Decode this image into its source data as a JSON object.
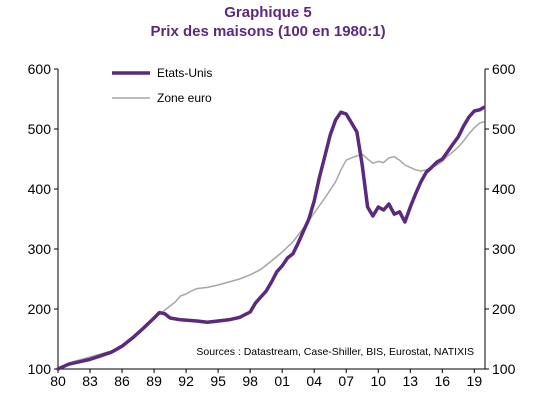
{
  "chart_data": {
    "type": "line",
    "title": "Graphique 5",
    "subtitle": "Prix des maisons (100 en 1980:1)",
    "source": "Sources  : Datastream,  Case-Shiller, BIS, Eurostat,  NATIXIS",
    "xlim": [
      1980,
      2020
    ],
    "ylim": [
      100,
      600
    ],
    "yticks": [
      100,
      200,
      300,
      400,
      500,
      600
    ],
    "xticks": [
      {
        "label": "80",
        "year": 1980
      },
      {
        "label": "83",
        "year": 1983
      },
      {
        "label": "86",
        "year": 1986
      },
      {
        "label": "89",
        "year": 1989
      },
      {
        "label": "92",
        "year": 1992
      },
      {
        "label": "95",
        "year": 1995
      },
      {
        "label": "98",
        "year": 1998
      },
      {
        "label": "01",
        "year": 2001
      },
      {
        "label": "04",
        "year": 2004
      },
      {
        "label": "07",
        "year": 2007
      },
      {
        "label": "10",
        "year": 2010
      },
      {
        "label": "13",
        "year": 2013
      },
      {
        "label": "16",
        "year": 2016
      },
      {
        "label": "19",
        "year": 2019
      }
    ],
    "grid": false,
    "legend_position": "top-left",
    "series": [
      {
        "name": "Etats-Unis",
        "color": "#5b2a7e",
        "points": [
          [
            1980.0,
            100
          ],
          [
            1981.0,
            108
          ],
          [
            1982.0,
            112
          ],
          [
            1983.0,
            116
          ],
          [
            1984.0,
            122
          ],
          [
            1985.0,
            128
          ],
          [
            1986.0,
            138
          ],
          [
            1987.0,
            152
          ],
          [
            1988.0,
            168
          ],
          [
            1989.0,
            185
          ],
          [
            1989.5,
            194
          ],
          [
            1990.0,
            192
          ],
          [
            1990.5,
            185
          ],
          [
            1991.5,
            182
          ],
          [
            1993.0,
            180
          ],
          [
            1994.0,
            178
          ],
          [
            1995.0,
            180
          ],
          [
            1996.0,
            182
          ],
          [
            1997.0,
            186
          ],
          [
            1998.0,
            195
          ],
          [
            1998.5,
            210
          ],
          [
            1999.0,
            220
          ],
          [
            1999.5,
            230
          ],
          [
            2000.0,
            245
          ],
          [
            2000.5,
            262
          ],
          [
            2001.0,
            272
          ],
          [
            2001.5,
            285
          ],
          [
            2002.0,
            292
          ],
          [
            2002.5,
            310
          ],
          [
            2003.0,
            330
          ],
          [
            2003.5,
            350
          ],
          [
            2004.0,
            380
          ],
          [
            2004.5,
            420
          ],
          [
            2005.0,
            455
          ],
          [
            2005.5,
            490
          ],
          [
            2006.0,
            515
          ],
          [
            2006.5,
            528
          ],
          [
            2007.0,
            525
          ],
          [
            2007.5,
            510
          ],
          [
            2008.0,
            495
          ],
          [
            2008.5,
            440
          ],
          [
            2009.0,
            370
          ],
          [
            2009.5,
            355
          ],
          [
            2010.0,
            370
          ],
          [
            2010.5,
            365
          ],
          [
            2011.0,
            375
          ],
          [
            2011.5,
            358
          ],
          [
            2012.0,
            362
          ],
          [
            2012.5,
            345
          ],
          [
            2013.0,
            370
          ],
          [
            2013.5,
            392
          ],
          [
            2014.0,
            412
          ],
          [
            2014.5,
            428
          ],
          [
            2015.0,
            436
          ],
          [
            2015.5,
            445
          ],
          [
            2016.0,
            450
          ],
          [
            2016.5,
            462
          ],
          [
            2017.0,
            475
          ],
          [
            2017.5,
            487
          ],
          [
            2018.0,
            505
          ],
          [
            2018.5,
            520
          ],
          [
            2019.0,
            530
          ],
          [
            2019.5,
            532
          ],
          [
            2019.9,
            536
          ]
        ]
      },
      {
        "name": "Zone euro",
        "color": "#a6a6a6",
        "points": [
          [
            1980.0,
            100
          ],
          [
            1981.0,
            110
          ],
          [
            1982.0,
            115
          ],
          [
            1983.0,
            120
          ],
          [
            1984.0,
            125
          ],
          [
            1985.0,
            130
          ],
          [
            1986.0,
            138
          ],
          [
            1987.0,
            150
          ],
          [
            1988.0,
            168
          ],
          [
            1989.0,
            185
          ],
          [
            1990.0,
            198
          ],
          [
            1990.5,
            205
          ],
          [
            1991.0,
            212
          ],
          [
            1991.5,
            222
          ],
          [
            1992.0,
            225
          ],
          [
            1992.5,
            230
          ],
          [
            1993.0,
            234
          ],
          [
            1994.0,
            236
          ],
          [
            1995.0,
            240
          ],
          [
            1996.0,
            245
          ],
          [
            1997.0,
            250
          ],
          [
            1998.0,
            257
          ],
          [
            1999.0,
            266
          ],
          [
            2000.0,
            280
          ],
          [
            2001.0,
            295
          ],
          [
            2002.0,
            312
          ],
          [
            2003.0,
            335
          ],
          [
            2004.0,
            360
          ],
          [
            2005.0,
            385
          ],
          [
            2006.0,
            412
          ],
          [
            2006.5,
            432
          ],
          [
            2007.0,
            448
          ],
          [
            2007.5,
            452
          ],
          [
            2008.0,
            455
          ],
          [
            2008.5,
            458
          ],
          [
            2009.0,
            450
          ],
          [
            2009.5,
            443
          ],
          [
            2010.0,
            446
          ],
          [
            2010.5,
            444
          ],
          [
            2011.0,
            452
          ],
          [
            2011.5,
            454
          ],
          [
            2012.0,
            448
          ],
          [
            2012.5,
            440
          ],
          [
            2013.0,
            436
          ],
          [
            2013.5,
            432
          ],
          [
            2014.0,
            430
          ],
          [
            2014.5,
            432
          ],
          [
            2015.0,
            436
          ],
          [
            2015.5,
            440
          ],
          [
            2016.0,
            446
          ],
          [
            2016.5,
            455
          ],
          [
            2017.0,
            462
          ],
          [
            2017.5,
            470
          ],
          [
            2018.0,
            480
          ],
          [
            2018.5,
            492
          ],
          [
            2019.0,
            502
          ],
          [
            2019.5,
            510
          ],
          [
            2019.9,
            512
          ]
        ]
      }
    ]
  }
}
